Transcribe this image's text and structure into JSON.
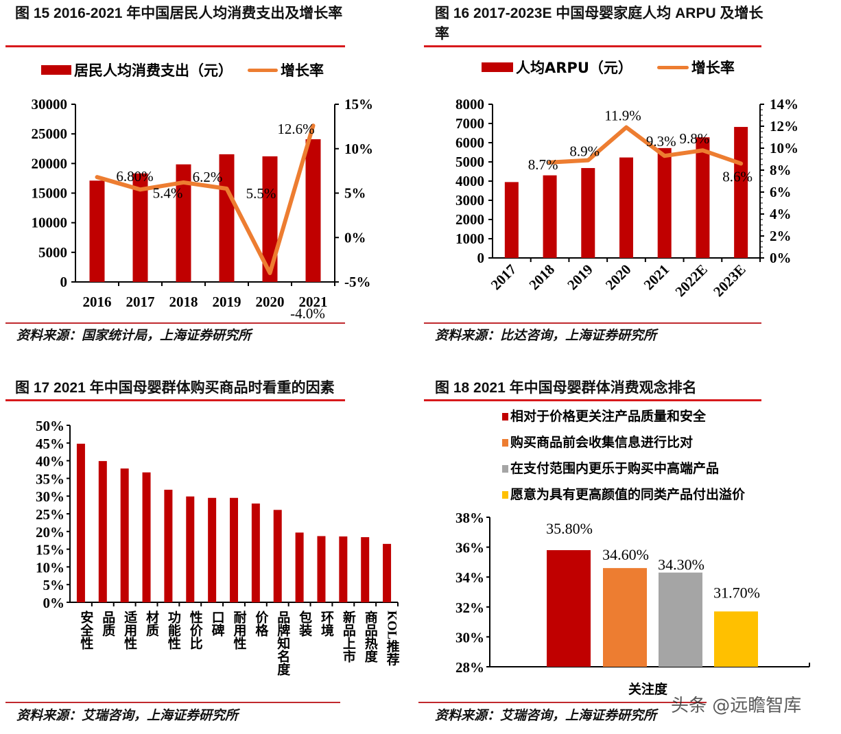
{
  "fig15": {
    "title": "图 15 2016-2021 年中国居民人均消费支出及增长率",
    "legend_bar": "居民人均消费支出（元）",
    "legend_line": "增长率",
    "source": "资料来源：国家统计局，上海证券研究所"
  },
  "fig16": {
    "title_line1": "图 16 2017-2023E 中国母婴家庭人均 ARPU 及增长",
    "title_line2": "率",
    "legend_bar": "人均ARPU（元）",
    "legend_line": "增长率",
    "source": "资料来源：比达咨询，上海证券研究所"
  },
  "fig17": {
    "title": "图 17 2021 年中国母婴群体购买商品时看重的因素",
    "source": "资料来源：艾瑞咨询，上海证券研究所"
  },
  "fig18": {
    "title": "图 18 2021 年中国母婴群体消费观念排名",
    "legend": [
      "相对于价格更关注产品质量和安全",
      "购买商品前会收集信息进行比对",
      "在支付范围内更乐于购买中高端产品",
      "愿意为具有更高颜值的同类产品付出溢价"
    ],
    "xlabel": "关注度",
    "source": "资料来源：艾瑞咨询，上海证券研究所"
  },
  "watermark": "头条 @远瞻智库",
  "colors": {
    "bar_red": "#c00000",
    "line_orange": "#ed7d31",
    "gray": "#a5a5a5",
    "yellow": "#ffc000",
    "rule_red": "#d7191c"
  },
  "chart_data": [
    {
      "type": "bar+line",
      "title": "图 15 2016-2021 年中国居民人均消费支出及增长率",
      "categories": [
        "2016",
        "2017",
        "2018",
        "2019",
        "2020",
        "2021"
      ],
      "series": [
        {
          "name": "居民人均消费支出（元）",
          "type": "bar",
          "axis": "left",
          "values": [
            17111,
            18322,
            19853,
            21559,
            21210,
            24100
          ]
        },
        {
          "name": "增长率",
          "type": "line",
          "axis": "right",
          "values": [
            6.8,
            5.4,
            6.2,
            5.5,
            -4.0,
            12.6
          ],
          "labels": [
            "6.80%",
            "5.4%",
            "6.2%",
            "5.5%",
            "-4.0%",
            "12.6%"
          ]
        }
      ],
      "ylim_left": [
        0,
        30000
      ],
      "yticks_left": [
        "0",
        "5000",
        "10000",
        "15000",
        "20000",
        "25000",
        "30000"
      ],
      "ylim_right": [
        -5,
        15
      ],
      "yticks_right": [
        "-5%",
        "0%",
        "5%",
        "10%",
        "15%"
      ],
      "legend_position": "top"
    },
    {
      "type": "bar+line",
      "title": "图 16 2017-2023E 中国母婴家庭人均 ARPU 及增长率",
      "categories": [
        "2017",
        "2018",
        "2019",
        "2020",
        "2021",
        "2022E",
        "2023E"
      ],
      "series": [
        {
          "name": "人均ARPU（元）",
          "type": "bar",
          "axis": "left",
          "values": [
            3950,
            4300,
            4680,
            5230,
            5720,
            6280,
            6820
          ]
        },
        {
          "name": "增长率",
          "type": "line",
          "axis": "right",
          "values": [
            null,
            8.7,
            8.9,
            11.9,
            9.3,
            9.8,
            8.6
          ],
          "labels": [
            "",
            "8.7%",
            "8.9%",
            "11.9%",
            "9.3%",
            "9.8%",
            "8.6%"
          ]
        }
      ],
      "ylim_left": [
        0,
        8000
      ],
      "yticks_left": [
        "0",
        "1000",
        "2000",
        "3000",
        "4000",
        "5000",
        "6000",
        "7000",
        "8000"
      ],
      "ylim_right": [
        0,
        14
      ],
      "yticks_right": [
        "0%",
        "2%",
        "4%",
        "6%",
        "8%",
        "10%",
        "12%",
        "14%"
      ],
      "legend_position": "top"
    },
    {
      "type": "bar",
      "title": "图 17 2021 年中国母婴群体购买商品时看重的因素",
      "categories": [
        "安全性",
        "品质",
        "适用性",
        "材质",
        "功能性",
        "性价比",
        "口碑",
        "耐用性",
        "价格",
        "品牌知名度",
        "包装",
        "环境",
        "新品上市",
        "商品热度",
        "KOL推荐"
      ],
      "values": [
        44.8,
        39.9,
        37.8,
        36.7,
        31.8,
        29.9,
        29.5,
        29.5,
        27.9,
        26.1,
        19.7,
        18.7,
        18.6,
        18.4,
        16.5
      ],
      "ylim": [
        0,
        50
      ],
      "yticks": [
        "0%",
        "5%",
        "10%",
        "15%",
        "20%",
        "25%",
        "30%",
        "35%",
        "40%",
        "45%",
        "50%"
      ]
    },
    {
      "type": "bar",
      "title": "图 18 2021 年中国母婴群体消费观念排名",
      "categories": [
        "关注度"
      ],
      "series": [
        {
          "name": "相对于价格更关注产品质量和安全",
          "values": [
            35.8
          ],
          "label": "35.80%",
          "color": "#c00000"
        },
        {
          "name": "购买商品前会收集信息进行比对",
          "values": [
            34.6
          ],
          "label": "34.60%",
          "color": "#ed7d31"
        },
        {
          "name": "在支付范围内更乐于购买中高端产品",
          "values": [
            34.3
          ],
          "label": "34.30%",
          "color": "#a5a5a5"
        },
        {
          "name": "愿意为具有更高颜值的同类产品付出溢价",
          "values": [
            31.7
          ],
          "label": "31.70%",
          "color": "#ffc000"
        }
      ],
      "xlabel": "关注度",
      "ylim": [
        28,
        38
      ],
      "yticks": [
        "28%",
        "30%",
        "32%",
        "34%",
        "36%",
        "38%"
      ],
      "legend_position": "top"
    }
  ]
}
